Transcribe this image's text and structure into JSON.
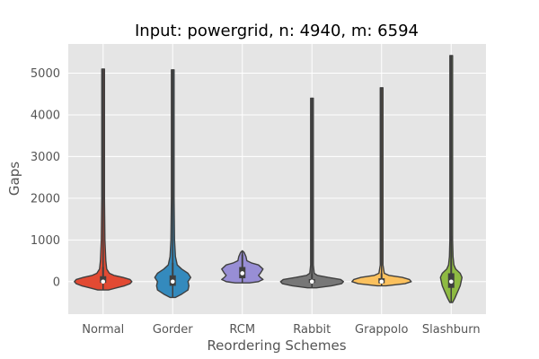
{
  "chart_data": {
    "type": "violin",
    "title": "Input: powergrid, n: 4940, m: 6594",
    "xlabel": "Reordering Schemes",
    "ylabel": "Gaps",
    "ylim": [
      -780,
      5700
    ],
    "yticks": [
      0,
      1000,
      2000,
      3000,
      4000,
      5000
    ],
    "grid": true,
    "categories": [
      "Normal",
      "Gorder",
      "RCM",
      "Rabbit",
      "Grappolo",
      "Slashburn"
    ],
    "colors": [
      "#e24a33",
      "#348abd",
      "#988ed5",
      "#777777",
      "#fbc15e",
      "#8eba42"
    ],
    "series": [
      {
        "max": 5100,
        "min": -200,
        "median": 0,
        "q1": -30,
        "q3": 130,
        "whisker_high": 350,
        "profile": [
          [
            -200,
            6
          ],
          [
            -150,
            15
          ],
          [
            -100,
            24
          ],
          [
            -50,
            30
          ],
          [
            0,
            32
          ],
          [
            50,
            30
          ],
          [
            100,
            22
          ],
          [
            150,
            12
          ],
          [
            200,
            7
          ],
          [
            300,
            4
          ],
          [
            500,
            3
          ],
          [
            1000,
            2
          ],
          [
            2000,
            1.5
          ],
          [
            5100,
            1.5
          ]
        ]
      },
      {
        "max": 5080,
        "min": -380,
        "median": 0,
        "q1": -100,
        "q3": 150,
        "whisker_high": 450,
        "profile": [
          [
            -380,
            3
          ],
          [
            -300,
            10
          ],
          [
            -200,
            17
          ],
          [
            -100,
            18
          ],
          [
            0,
            17
          ],
          [
            100,
            20
          ],
          [
            200,
            17
          ],
          [
            300,
            10
          ],
          [
            400,
            5
          ],
          [
            600,
            3
          ],
          [
            1000,
            2
          ],
          [
            2000,
            1.5
          ],
          [
            5080,
            1.5
          ]
        ]
      },
      {
        "max": 740,
        "min": -30,
        "median": 200,
        "q1": 80,
        "q3": 350,
        "whisker_high": 650,
        "profile": [
          [
            -30,
            8
          ],
          [
            0,
            18
          ],
          [
            50,
            23
          ],
          [
            100,
            20
          ],
          [
            150,
            18
          ],
          [
            200,
            20
          ],
          [
            300,
            23
          ],
          [
            400,
            18
          ],
          [
            450,
            10
          ],
          [
            500,
            5
          ],
          [
            600,
            4
          ],
          [
            700,
            2
          ],
          [
            740,
            0
          ]
        ]
      },
      {
        "max": 4400,
        "min": -150,
        "median": 0,
        "q1": -30,
        "q3": 60,
        "whisker_high": 180,
        "profile": [
          [
            -150,
            5
          ],
          [
            -100,
            22
          ],
          [
            -50,
            33
          ],
          [
            0,
            35
          ],
          [
            50,
            32
          ],
          [
            100,
            18
          ],
          [
            150,
            6
          ],
          [
            200,
            2.5
          ],
          [
            400,
            1.5
          ],
          [
            4400,
            1.5
          ]
        ]
      },
      {
        "max": 4650,
        "min": -100,
        "median": 0,
        "q1": -40,
        "q3": 80,
        "whisker_high": 200,
        "profile": [
          [
            -100,
            5
          ],
          [
            -50,
            26
          ],
          [
            0,
            33
          ],
          [
            50,
            31
          ],
          [
            100,
            23
          ],
          [
            150,
            8
          ],
          [
            200,
            3
          ],
          [
            400,
            1.5
          ],
          [
            4650,
            1.5
          ]
        ]
      },
      {
        "max": 5420,
        "min": -500,
        "median": 0,
        "q1": -150,
        "q3": 200,
        "whisker_high": 1100,
        "profile": [
          [
            -500,
            1.5
          ],
          [
            -400,
            4
          ],
          [
            -300,
            6
          ],
          [
            -200,
            8
          ],
          [
            -100,
            10
          ],
          [
            0,
            11
          ],
          [
            100,
            12
          ],
          [
            200,
            10
          ],
          [
            300,
            5
          ],
          [
            400,
            3
          ],
          [
            600,
            2
          ],
          [
            1000,
            1.5
          ],
          [
            5420,
            1.5
          ]
        ]
      }
    ]
  }
}
